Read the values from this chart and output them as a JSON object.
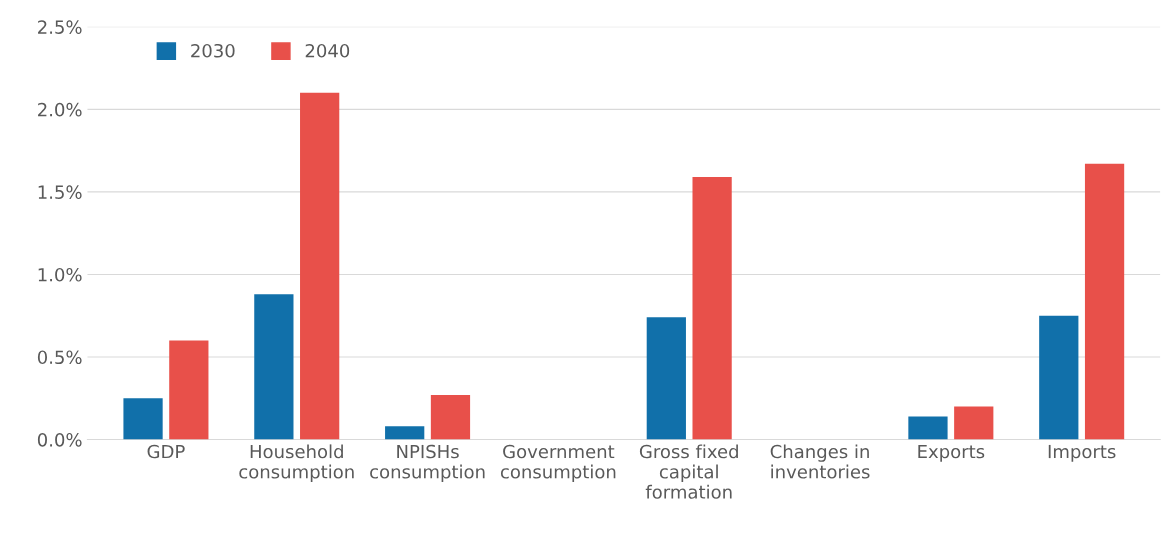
{
  "chart_data": {
    "type": "bar",
    "categories": [
      "GDP",
      "Household\nconsumption",
      "NPISHs\nconsumption",
      "Government\nconsumption",
      "Gross fixed\ncapital\nformation",
      "Changes in\ninventories",
      "Exports",
      "Imports"
    ],
    "series": [
      {
        "name": "2030",
        "color": "#1170aa",
        "values": [
          0.25,
          0.88,
          0.08,
          0,
          0.74,
          0,
          0.14,
          0.75
        ]
      },
      {
        "name": "2040",
        "color": "#e8504a",
        "values": [
          0.6,
          2.1,
          0.27,
          0,
          1.59,
          0,
          0.2,
          1.67
        ]
      }
    ],
    "ylim": [
      0,
      2.5
    ],
    "yticks": [
      {
        "value": 0,
        "label": "0.0%"
      },
      {
        "value": 0.5,
        "label": "0.5%"
      },
      {
        "value": 1.0,
        "label": "1.0%"
      },
      {
        "value": 1.5,
        "label": "1.5%"
      },
      {
        "value": 2.0,
        "label": "2.0%"
      },
      {
        "value": 2.5,
        "label": "2.5%"
      }
    ],
    "grid": "y",
    "legend": "top left"
  }
}
